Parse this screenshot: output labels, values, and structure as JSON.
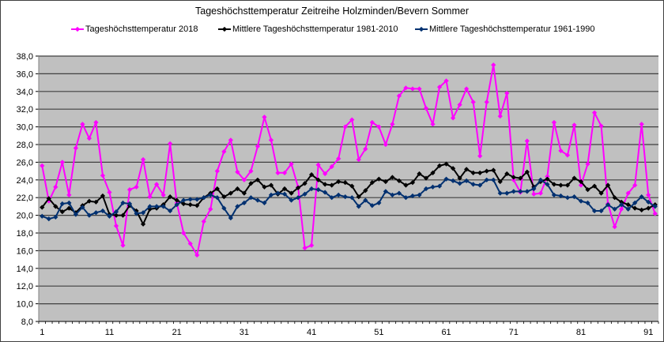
{
  "chart_data": {
    "type": "line",
    "title": "Tageshöchsttemperatur Zeitreihe Holzminden/Bevern  Sommer",
    "xlabel": "",
    "ylabel": "",
    "ylim": [
      8,
      38
    ],
    "yticks": [
      "8,0",
      "10,0",
      "12,0",
      "14,0",
      "16,0",
      "18,0",
      "20,0",
      "22,0",
      "24,0",
      "26,0",
      "28,0",
      "30,0",
      "32,0",
      "34,0",
      "36,0",
      "38,0"
    ],
    "xticks": [
      "1",
      "11",
      "21",
      "31",
      "41",
      "51",
      "61",
      "71",
      "81",
      "91"
    ],
    "grid": true,
    "legend_position": "top",
    "plot_background": "#c0c0c0",
    "x": [
      1,
      2,
      3,
      4,
      5,
      6,
      7,
      8,
      9,
      10,
      11,
      12,
      13,
      14,
      15,
      16,
      17,
      18,
      19,
      20,
      21,
      22,
      23,
      24,
      25,
      26,
      27,
      28,
      29,
      30,
      31,
      32,
      33,
      34,
      35,
      36,
      37,
      38,
      39,
      40,
      41,
      42,
      43,
      44,
      45,
      46,
      47,
      48,
      49,
      50,
      51,
      52,
      53,
      54,
      55,
      56,
      57,
      58,
      59,
      60,
      61,
      62,
      63,
      64,
      65,
      66,
      67,
      68,
      69,
      70,
      71,
      72,
      73,
      74,
      75,
      76,
      77,
      78,
      79,
      80,
      81,
      82,
      83,
      84,
      85,
      86,
      87,
      88,
      89,
      90,
      91,
      92
    ],
    "series": [
      {
        "name": "Tageshöchsttemperatur 2018",
        "color": "#ff00ff",
        "values": [
          25.6,
          21.6,
          23.2,
          26.0,
          22.3,
          27.6,
          30.3,
          28.7,
          30.5,
          24.5,
          22.6,
          18.8,
          16.6,
          22.9,
          23.2,
          26.3,
          22.1,
          23.5,
          22.3,
          28.1,
          21.4,
          18.0,
          16.8,
          15.5,
          19.3,
          20.7,
          25.0,
          27.2,
          28.5,
          24.9,
          24.0,
          25.0,
          27.8,
          31.1,
          28.5,
          24.8,
          24.8,
          25.8,
          23.2,
          16.3,
          16.6,
          25.7,
          24.7,
          25.5,
          26.4,
          30.0,
          30.8,
          26.3,
          27.5,
          30.5,
          30.0,
          28.0,
          30.3,
          33.5,
          34.4,
          34.3,
          34.3,
          32.1,
          30.3,
          34.5,
          35.2,
          31.0,
          32.5,
          34.3,
          32.8,
          26.7,
          32.8,
          37.0,
          31.2,
          33.8,
          24.0,
          22.6,
          28.4,
          22.4,
          22.5,
          24.4,
          30.5,
          27.3,
          26.8,
          30.2,
          23.4,
          25.8,
          31.6,
          30.1,
          21.3,
          18.7,
          20.7,
          22.5,
          23.4,
          30.3,
          22.3,
          20.2
        ]
      },
      {
        "name": "Mittlere Tageshöchsttemperatur 1981-2010",
        "color": "#000000",
        "values": [
          20.9,
          21.9,
          21.0,
          20.4,
          20.8,
          20.3,
          21.1,
          21.6,
          21.5,
          22.2,
          20.1,
          20.0,
          20.0,
          21.1,
          20.5,
          19.0,
          20.7,
          20.8,
          21.2,
          22.1,
          21.7,
          21.3,
          21.2,
          21.1,
          22.0,
          22.5,
          23.0,
          22.1,
          22.5,
          23.0,
          22.5,
          23.6,
          24.0,
          23.2,
          23.4,
          22.4,
          23.0,
          22.5,
          23.1,
          23.6,
          24.6,
          24.0,
          23.5,
          23.4,
          23.8,
          23.7,
          23.3,
          22.1,
          22.8,
          23.7,
          24.1,
          23.8,
          24.3,
          23.9,
          23.4,
          23.7,
          24.7,
          24.2,
          24.8,
          25.6,
          25.8,
          25.3,
          24.2,
          25.2,
          24.8,
          24.8,
          25.0,
          25.1,
          23.8,
          24.7,
          24.3,
          24.2,
          24.9,
          23.2,
          23.8,
          24.1,
          23.5,
          23.4,
          23.4,
          24.2,
          23.8,
          22.9,
          23.3,
          22.5,
          23.4,
          22.0,
          21.5,
          21.2,
          20.8,
          20.6,
          20.8,
          21.2
        ]
      },
      {
        "name": "Mittlere Tageshöchsttemperatur 1961-1990",
        "color": "#003070",
        "values": [
          19.9,
          19.6,
          19.8,
          21.3,
          21.4,
          20.1,
          20.9,
          20.0,
          20.3,
          20.5,
          19.9,
          20.4,
          21.4,
          21.3,
          20.2,
          20.3,
          21.0,
          21.0,
          21.0,
          20.5,
          21.2,
          21.7,
          21.8,
          21.8,
          22.0,
          22.3,
          22.0,
          20.8,
          19.7,
          21.0,
          21.4,
          22.0,
          21.7,
          21.4,
          22.3,
          22.5,
          22.4,
          21.7,
          22.0,
          22.4,
          23.0,
          22.9,
          22.6,
          22.0,
          22.3,
          22.1,
          22.0,
          21.0,
          21.7,
          21.1,
          21.4,
          22.7,
          22.3,
          22.5,
          22.0,
          22.2,
          22.3,
          23.0,
          23.2,
          23.3,
          24.1,
          23.9,
          23.6,
          23.9,
          23.5,
          23.4,
          24.0,
          24.0,
          22.5,
          22.5,
          22.7,
          22.7,
          22.7,
          23.0,
          24.0,
          23.5,
          22.3,
          22.2,
          22.0,
          22.1,
          21.6,
          21.4,
          20.5,
          20.5,
          21.2,
          20.7,
          21.2,
          20.7,
          21.4,
          22.1,
          21.5,
          21.0
        ]
      }
    ]
  },
  "legend": {
    "items": [
      {
        "label": "Tageshöchsttemperatur 2018",
        "color": "#ff00ff"
      },
      {
        "label": "Mittlere Tageshöchsttemperatur 1981-2010",
        "color": "#000000"
      },
      {
        "label": "Mittlere Tageshöchsttemperatur 1961-1990",
        "color": "#003070"
      }
    ]
  }
}
